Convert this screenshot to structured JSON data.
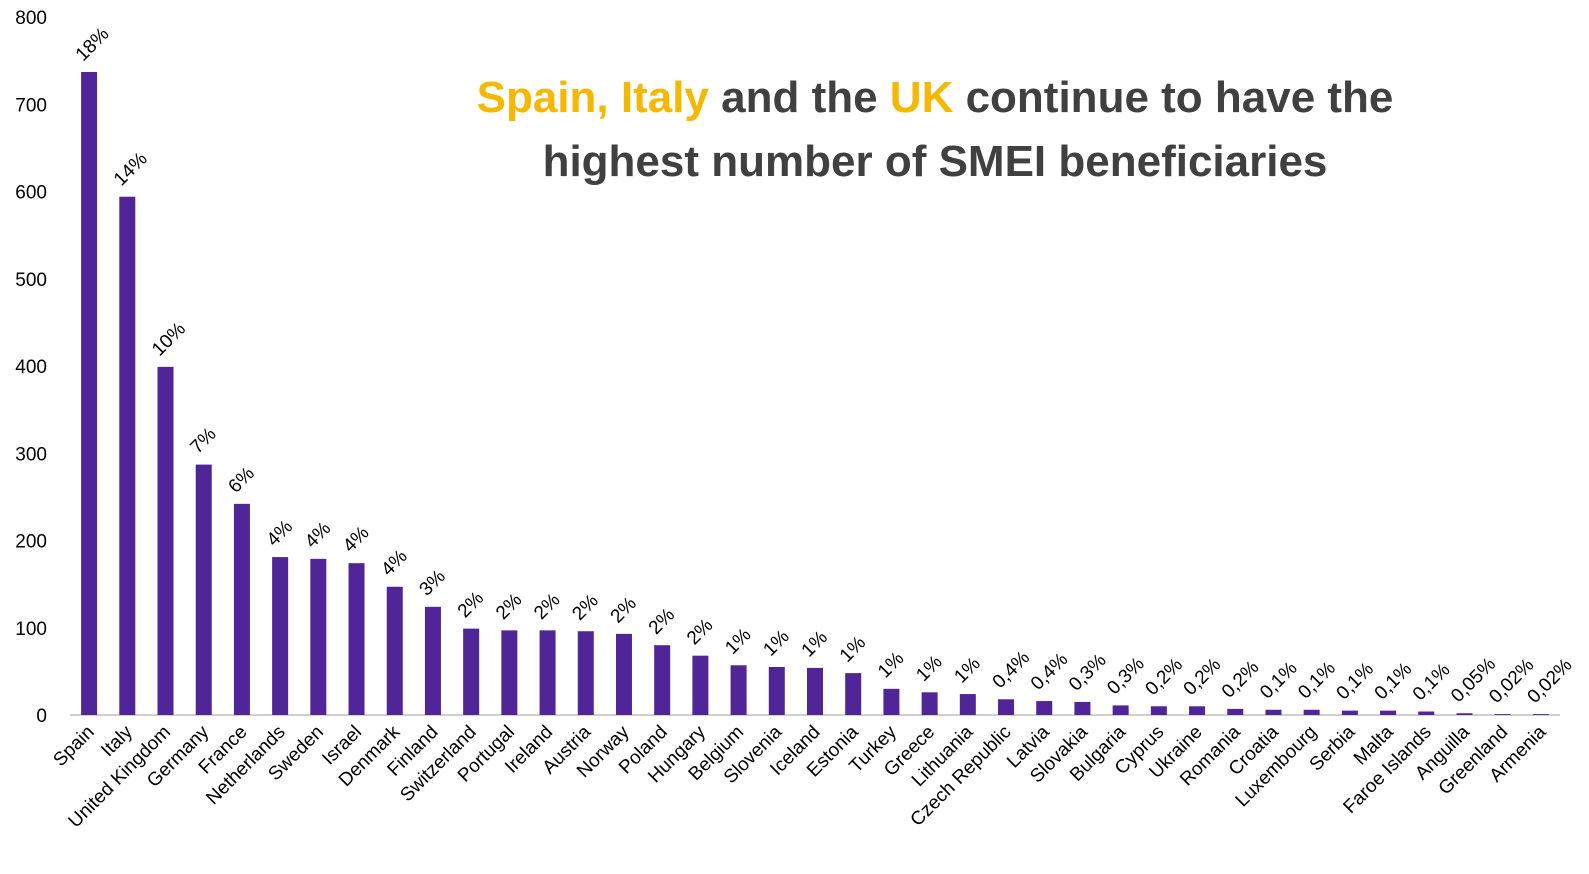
{
  "chart_data": {
    "type": "bar",
    "title_lines": [
      [
        {
          "text": "Spain, Italy",
          "color": "#f5b800"
        },
        {
          "text": " and the ",
          "color": "#404040"
        },
        {
          "text": "UK",
          "color": "#f5b800"
        },
        {
          "text": " continue to have the",
          "color": "#404040"
        }
      ],
      [
        {
          "text": "highest number of SMEI beneficiaries",
          "color": "#404040"
        }
      ]
    ],
    "categories": [
      "Spain",
      "Italy",
      "United Kingdom",
      "Germany",
      "France",
      "Netherlands",
      "Sweden",
      "Israel",
      "Denmark",
      "Finland",
      "Switzerland",
      "Portugal",
      "Ireland",
      "Austria",
      "Norway",
      "Poland",
      "Hungary",
      "Belgium",
      "Slovenia",
      "Iceland",
      "Estonia",
      "Turkey",
      "Greece",
      "Lithuania",
      "Czech Republic",
      "Latvia",
      "Slovakia",
      "Bulgaria",
      "Cyprus",
      "Ukraine",
      "Romania",
      "Croatia",
      "Luxembourg",
      "Serbia",
      "Malta",
      "Faroe Islands",
      "Anguilla",
      "Greenland",
      "Armenia"
    ],
    "values": [
      737,
      594,
      399,
      287,
      242,
      181,
      179,
      174,
      147,
      124,
      99,
      97,
      97,
      96,
      93,
      80,
      68,
      57,
      55,
      54,
      48,
      30,
      26,
      24,
      18,
      16,
      15,
      11,
      10,
      10,
      7,
      6,
      6,
      5,
      5,
      4,
      2,
      1,
      1
    ],
    "share_labels": [
      "18%",
      "14%",
      "10%",
      "7%",
      "6%",
      "4%",
      "4%",
      "4%",
      "4%",
      "3%",
      "2%",
      "2%",
      "2%",
      "2%",
      "2%",
      "2%",
      "2%",
      "1%",
      "1%",
      "1%",
      "1%",
      "1%",
      "1%",
      "1%",
      "0,4%",
      "0,4%",
      "0,3%",
      "0,3%",
      "0,2%",
      "0,2%",
      "0,2%",
      "0,1%",
      "0,1%",
      "0,1%",
      "0,1%",
      "0,1%",
      "0,05%",
      "0,02%",
      "0,02%"
    ],
    "color": "#4f2597",
    "ylim": [
      0,
      800
    ],
    "yticks": [
      0,
      100,
      200,
      300,
      400,
      500,
      600,
      700,
      800
    ],
    "grid": false
  }
}
